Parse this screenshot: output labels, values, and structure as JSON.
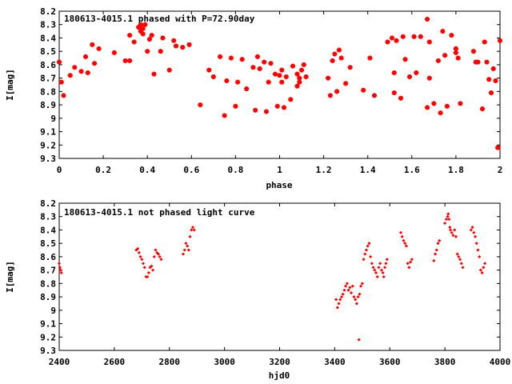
{
  "chart_data": [
    {
      "type": "scatter",
      "title": "180613-4015.1 phased with P=72.90day",
      "xlabel": "phase",
      "ylabel": "I[mag]",
      "xlim": [
        0,
        2
      ],
      "ylim": [
        8.2,
        9.3
      ],
      "y_inverted": true,
      "xticks": [
        "0",
        "0.2",
        "0.4",
        "0.6",
        "0.8",
        "1",
        "1.2",
        "1.4",
        "1.6",
        "1.8",
        "2"
      ],
      "yticks": [
        "8.2",
        "8.3",
        "8.4",
        "8.5",
        "8.6",
        "8.7",
        "8.8",
        "8.9",
        "9",
        "9.1",
        "9.2",
        "9.3"
      ],
      "marker_color": "#ff0000",
      "series": [
        {
          "x": [
            0.0,
            0.01,
            0.02,
            0.05,
            0.07,
            0.1,
            0.12,
            0.13,
            0.15,
            0.16,
            0.18,
            0.25,
            0.3,
            0.32,
            0.32,
            0.34,
            0.36,
            0.37,
            0.37,
            0.38,
            0.38,
            0.39,
            0.4,
            0.41,
            0.42,
            0.43,
            0.46,
            0.47,
            0.5,
            0.52,
            0.53,
            0.56,
            0.59,
            0.64,
            0.68,
            0.7,
            0.73,
            0.75,
            0.76,
            0.78,
            0.8,
            0.81,
            0.83,
            0.85,
            0.88,
            0.89,
            0.9,
            0.91,
            0.93,
            0.94,
            0.95,
            0.96,
            0.98,
            0.99,
            1.0,
            1.01,
            1.02,
            1.03,
            1.05,
            1.06,
            1.08,
            1.08,
            1.09,
            1.1,
            1.11,
            1.12,
            1.22,
            1.23,
            1.24,
            1.25,
            1.26,
            1.27,
            1.28,
            1.3,
            1.32,
            1.38,
            1.41,
            1.43,
            1.49,
            1.51,
            1.52,
            1.52,
            1.53,
            1.55,
            1.56,
            1.57,
            1.59,
            1.61,
            1.62,
            1.64,
            1.67,
            1.67,
            1.68,
            1.7,
            1.72,
            1.73,
            1.74,
            1.75,
            1.76,
            1.78,
            1.8,
            1.8,
            1.81,
            1.82,
            1.88,
            1.89,
            1.9,
            1.92,
            1.93,
            1.94,
            1.95,
            1.96,
            1.97,
            1.98,
            1.99,
            2.0,
            1.68,
            1.01,
            1.09
          ],
          "y": [
            8.58,
            8.73,
            8.83,
            8.68,
            8.62,
            8.65,
            8.54,
            8.66,
            8.45,
            8.59,
            8.48,
            8.51,
            8.57,
            8.57,
            8.38,
            8.43,
            8.32,
            8.3,
            8.35,
            8.33,
            8.37,
            8.3,
            8.5,
            8.41,
            8.38,
            8.67,
            8.5,
            8.4,
            8.64,
            8.42,
            8.46,
            8.47,
            8.45,
            8.9,
            8.64,
            8.69,
            8.54,
            8.98,
            8.72,
            8.55,
            8.91,
            8.73,
            8.56,
            8.78,
            8.62,
            8.94,
            8.54,
            8.63,
            8.58,
            8.95,
            8.73,
            8.59,
            8.67,
            8.91,
            8.68,
            8.64,
            8.92,
            8.69,
            8.86,
            8.61,
            8.67,
            8.76,
            8.7,
            8.64,
            8.6,
            8.69,
            8.7,
            8.83,
            8.57,
            8.52,
            8.8,
            8.49,
            8.55,
            8.74,
            8.62,
            8.79,
            8.55,
            8.83,
            8.43,
            8.4,
            8.81,
            8.66,
            8.42,
            8.85,
            8.39,
            8.56,
            8.69,
            8.39,
            8.66,
            8.39,
            8.26,
            8.92,
            8.43,
            8.89,
            8.57,
            8.96,
            8.35,
            8.53,
            8.91,
            8.38,
            8.48,
            8.51,
            8.55,
            8.89,
            8.5,
            8.58,
            8.58,
            8.93,
            8.43,
            8.58,
            8.71,
            8.81,
            8.63,
            8.72,
            9.22,
            8.42,
            8.7,
            8.73,
            8.73
          ]
        }
      ]
    },
    {
      "type": "scatter",
      "title": "180613-4015.1 not phased light curve",
      "xlabel": "hjd0",
      "ylabel": "I[mag]",
      "xlim": [
        2400,
        4000
      ],
      "ylim": [
        8.2,
        9.3
      ],
      "y_inverted": true,
      "xticks": [
        "2400",
        "2600",
        "2800",
        "3000",
        "3200",
        "3400",
        "3600",
        "3800",
        "4000"
      ],
      "yticks": [
        "8.2",
        "8.3",
        "8.4",
        "8.5",
        "8.6",
        "8.7",
        "8.8",
        "8.9",
        "9",
        "9.1",
        "9.2",
        "9.3"
      ],
      "marker_color": "#ff0000",
      "series": [
        {
          "x": [
            2400,
            2403,
            2405,
            2408,
            2680,
            2685,
            2690,
            2695,
            2700,
            2705,
            2710,
            2715,
            2720,
            2725,
            2730,
            2735,
            2740,
            2745,
            2750,
            2755,
            2760,
            2765,
            2770,
            2850,
            2855,
            2860,
            2865,
            2870,
            2875,
            2880,
            2885,
            2890,
            3405,
            3410,
            3415,
            3420,
            3425,
            3430,
            3435,
            3440,
            3445,
            3450,
            3455,
            3460,
            3465,
            3470,
            3475,
            3480,
            3485,
            3490,
            3495,
            3500,
            3505,
            3510,
            3515,
            3520,
            3525,
            3530,
            3535,
            3540,
            3545,
            3550,
            3555,
            3560,
            3565,
            3570,
            3575,
            3578,
            3582,
            3586,
            3590,
            3640,
            3645,
            3650,
            3655,
            3660,
            3665,
            3670,
            3675,
            3680,
            3760,
            3765,
            3770,
            3775,
            3780,
            3800,
            3805,
            3810,
            3812,
            3815,
            3818,
            3820,
            3825,
            3830,
            3835,
            3840,
            3845,
            3850,
            3855,
            3860,
            3865,
            3895,
            3900,
            3905,
            3910,
            3915,
            3920,
            3925,
            3930,
            3935,
            3940,
            3945,
            3488
          ],
          "y": [
            8.65,
            8.68,
            8.7,
            8.72,
            8.55,
            8.54,
            8.57,
            8.6,
            8.62,
            8.65,
            8.68,
            8.75,
            8.75,
            8.72,
            8.68,
            8.67,
            8.7,
            8.6,
            8.55,
            8.57,
            8.58,
            8.6,
            8.62,
            8.58,
            8.55,
            8.5,
            8.52,
            8.55,
            8.45,
            8.4,
            8.38,
            8.4,
            8.92,
            8.98,
            8.95,
            8.92,
            8.9,
            8.88,
            8.85,
            8.82,
            8.8,
            8.85,
            8.83,
            8.87,
            8.82,
            8.9,
            8.92,
            8.95,
            8.9,
            8.88,
            8.82,
            8.8,
            8.62,
            8.58,
            8.55,
            8.52,
            8.5,
            8.6,
            8.65,
            8.68,
            8.7,
            8.72,
            8.75,
            8.68,
            8.65,
            8.7,
            8.72,
            8.75,
            8.68,
            8.65,
            8.62,
            8.42,
            8.45,
            8.48,
            8.5,
            8.52,
            8.65,
            8.68,
            8.64,
            8.62,
            8.63,
            8.58,
            8.55,
            8.5,
            8.48,
            8.35,
            8.32,
            8.3,
            8.28,
            8.32,
            8.38,
            8.4,
            8.42,
            8.44,
            8.4,
            8.45,
            8.58,
            8.6,
            8.62,
            8.65,
            8.68,
            8.4,
            8.38,
            8.42,
            8.45,
            8.5,
            8.55,
            8.6,
            8.7,
            8.72,
            8.68,
            8.65,
            9.22
          ]
        }
      ]
    }
  ]
}
